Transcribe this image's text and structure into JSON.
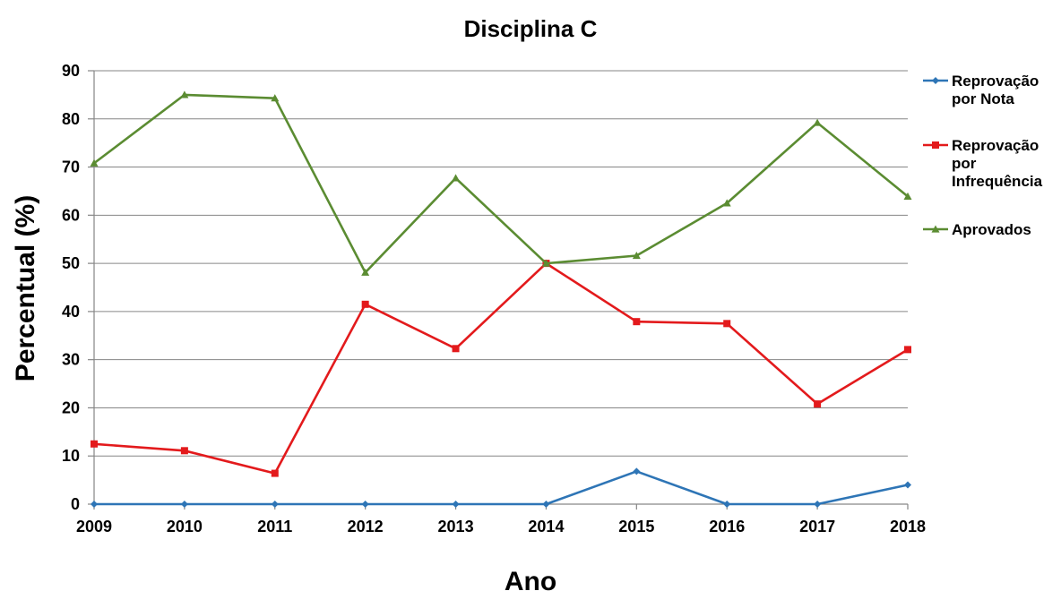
{
  "chart_data": {
    "type": "line",
    "title": "Disciplina C",
    "xlabel": "Ano",
    "ylabel": "Percentual (%)",
    "x": [
      "2009",
      "2010",
      "2011",
      "2012",
      "2013",
      "2014",
      "2015",
      "2016",
      "2017",
      "2018"
    ],
    "ylim": [
      0,
      90
    ],
    "yticks": [
      "0",
      "10",
      "20",
      "30",
      "40",
      "50",
      "60",
      "70",
      "80",
      "90"
    ],
    "grid": true,
    "legend_position": "right",
    "series": [
      {
        "name": "Reprovação por Nota",
        "legend_lines": [
          "Reprovação",
          "por Nota"
        ],
        "color": "#2e75b6",
        "marker": "diamond",
        "values": [
          0,
          0,
          0,
          0,
          0,
          0,
          6.8,
          0,
          0,
          4
        ]
      },
      {
        "name": "Reprovação por Infrequência",
        "legend_lines": [
          "Reprovação",
          "por",
          "Infrequência"
        ],
        "color": "#e31a1c",
        "marker": "square",
        "values": [
          12.5,
          11.1,
          6.4,
          41.5,
          32.3,
          50,
          37.9,
          37.5,
          20.8,
          32.1
        ]
      },
      {
        "name": "Aprovados",
        "legend_lines": [
          "Aprovados"
        ],
        "color": "#5b8c32",
        "marker": "triangle",
        "values": [
          70.8,
          85,
          84.3,
          48.1,
          67.7,
          50,
          51.6,
          62.5,
          79.2,
          63.9
        ]
      }
    ]
  }
}
